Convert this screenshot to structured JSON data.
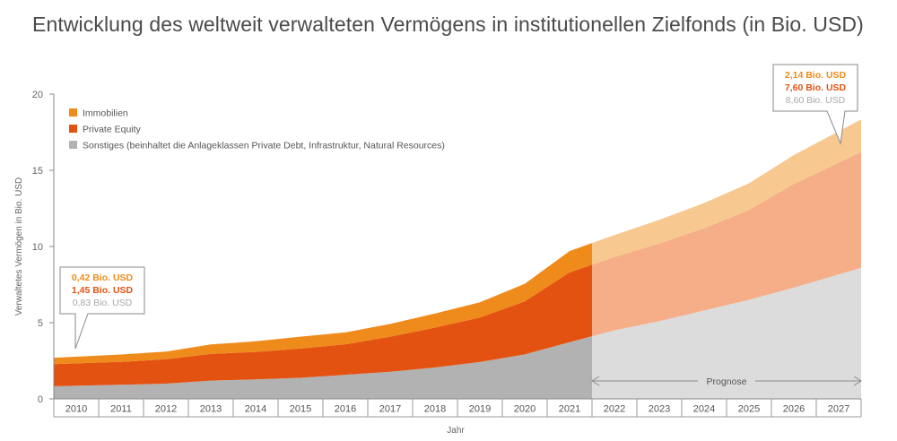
{
  "title": "Entwicklung des weltweit verwalteten Vermögens in institutionellen Zielfonds (in Bio. USD)",
  "chart_data": {
    "type": "area",
    "stacked": true,
    "categories": [
      "2010",
      "2011",
      "2012",
      "2013",
      "2014",
      "2015",
      "2016",
      "2017",
      "2018",
      "2019",
      "2020",
      "2021",
      "2022",
      "2023",
      "2024",
      "2025",
      "2026",
      "2027"
    ],
    "xlabel": "Jahr",
    "ylabel": "Verwaltetes Vermögen in Bio. USD",
    "ylim": [
      0,
      20
    ],
    "yticks": [
      "0",
      "5",
      "10",
      "15",
      "20"
    ],
    "grid": false,
    "legend_position": "top-left",
    "forecast_from": "2021",
    "forecast_label": "Prognose",
    "series": [
      {
        "name": "Sonstiges (beinhaltet die Anlageklassen Private Debt, Infrastruktur, Natural Resources)",
        "color": "#b3b2b2",
        "forecast_color": "#dcdcdc",
        "values": [
          0.83,
          0.93,
          1.0,
          1.2,
          1.28,
          1.38,
          1.58,
          1.78,
          2.06,
          2.42,
          2.92,
          3.72,
          4.5,
          5.1,
          5.8,
          6.5,
          7.3,
          8.6
        ]
      },
      {
        "name": "Private Equity",
        "color": "#e45211",
        "forecast_color": "#f5ae87",
        "values": [
          1.45,
          1.5,
          1.6,
          1.75,
          1.8,
          1.92,
          2.0,
          2.3,
          2.62,
          2.92,
          3.48,
          4.58,
          4.8,
          5.1,
          5.4,
          5.9,
          6.8,
          7.6
        ]
      },
      {
        "name": "Immobilien",
        "color": "#ef8b1b",
        "forecast_color": "#f8c891",
        "values": [
          0.42,
          0.48,
          0.5,
          0.62,
          0.7,
          0.78,
          0.78,
          0.84,
          0.92,
          1.0,
          1.15,
          1.4,
          1.45,
          1.55,
          1.65,
          1.75,
          1.9,
          2.14
        ]
      }
    ],
    "annotations": [
      {
        "year": "2010",
        "lines": [
          "0,42 Bio. USD",
          "1,45 Bio. USD",
          "0,83 Bio. USD"
        ],
        "colors": [
          "#ef8b1b",
          "#e45211",
          "#a8a8a8"
        ]
      },
      {
        "year": "2027",
        "lines": [
          "2,14 Bio. USD",
          "7,60 Bio. USD",
          "8,60 Bio. USD"
        ],
        "colors": [
          "#ef8b1b",
          "#e45211",
          "#a8a8a8"
        ]
      }
    ]
  }
}
